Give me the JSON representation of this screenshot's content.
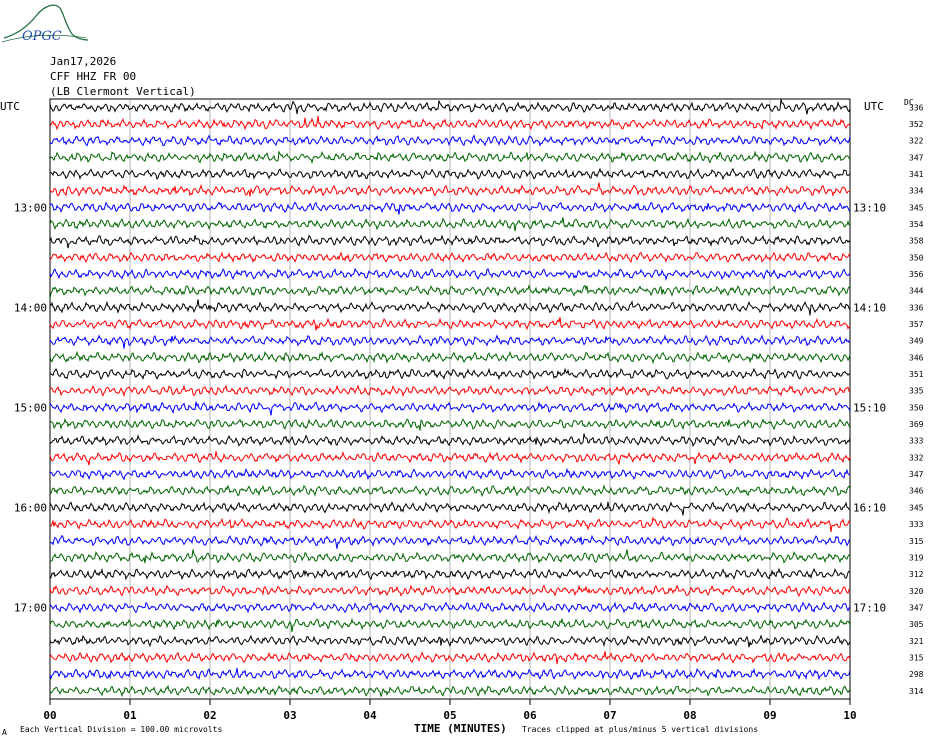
{
  "header": {
    "logo_text": "OPGC",
    "date": "Jan17,2026",
    "station": "CFF HHZ FR 00",
    "location": "(LB  Clermont Vertical)"
  },
  "axes": {
    "left_label": "UTC",
    "right_label": "UTC",
    "dc_label": "DC"
  },
  "footer": {
    "scale_note": "Each Vertical Division =  100.00 microvolts",
    "clip_note": "Traces clipped at plus/minus 5 vertical divisions",
    "corner_mark": "A"
  },
  "colors": {
    "trace_cycle": [
      "#000000",
      "#ff0000",
      "#0000ff",
      "#006400"
    ],
    "grid": "#808080",
    "logo": "#1a6b3a"
  },
  "chart_data": {
    "type": "line",
    "title": "Jan17,2026",
    "xlabel": "TIME (MINUTES)",
    "ylabel": "",
    "xlim": [
      0,
      10
    ],
    "x_ticks": [
      "00",
      "01",
      "02",
      "03",
      "04",
      "05",
      "06",
      "07",
      "08",
      "09",
      "10"
    ],
    "left_hour_labels": [
      {
        "row": 6,
        "label": "13:00"
      },
      {
        "row": 12,
        "label": "14:00"
      },
      {
        "row": 18,
        "label": "15:00"
      },
      {
        "row": 24,
        "label": "16:00"
      },
      {
        "row": 30,
        "label": "17:00"
      }
    ],
    "right_hour_labels": [
      {
        "row": 6,
        "label": "13:10"
      },
      {
        "row": 12,
        "label": "14:10"
      },
      {
        "row": 18,
        "label": "15:10"
      },
      {
        "row": 24,
        "label": "16:10"
      },
      {
        "row": 30,
        "label": "17:10"
      }
    ],
    "rows": 36,
    "minutes_per_row": 10,
    "dc_offsets": [
      336,
      352,
      322,
      347,
      341,
      334,
      345,
      354,
      358,
      350,
      356,
      344,
      336,
      357,
      349,
      346,
      351,
      335,
      350,
      369,
      333,
      332,
      347,
      346,
      345,
      333,
      315,
      319,
      312,
      320,
      347,
      305,
      321,
      315,
      298,
      314
    ]
  }
}
